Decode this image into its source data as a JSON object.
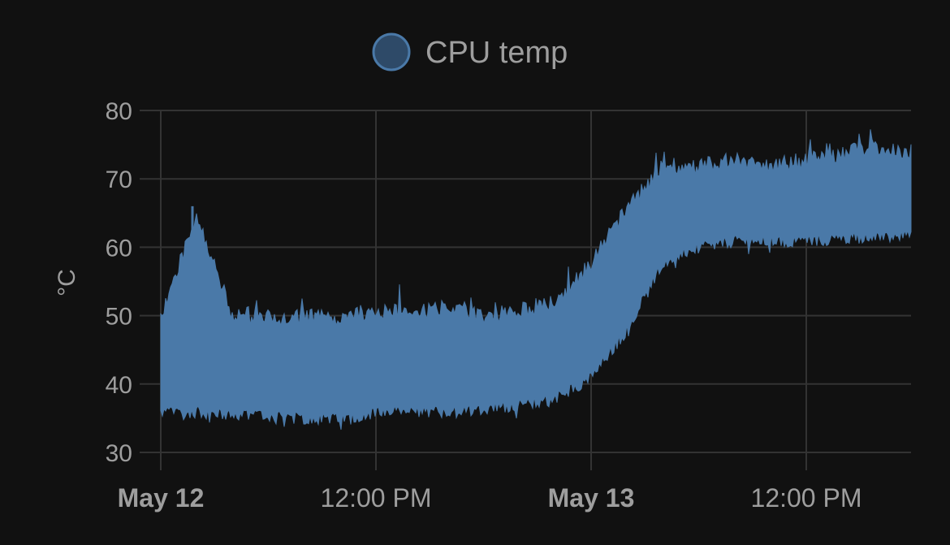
{
  "chart_data": {
    "type": "area",
    "title": "",
    "ylabel": "°C",
    "xlabel": "",
    "ylim": [
      30,
      80
    ],
    "y_ticks": [
      30,
      40,
      50,
      60,
      70,
      80
    ],
    "x_range": [
      "2024-05-12 00:00",
      "2024-05-13 21:00"
    ],
    "x_ticks": [
      {
        "value": "2024-05-12 00:00",
        "label": "May 12",
        "major": true
      },
      {
        "value": "2024-05-12 12:00",
        "label": "12:00 PM",
        "major": false
      },
      {
        "value": "2024-05-13 00:00",
        "label": "May 13",
        "major": true
      },
      {
        "value": "2024-05-13 12:00",
        "label": "12:00 PM",
        "major": false
      }
    ],
    "grid": true,
    "legend_position": "top-center",
    "series": [
      {
        "name": "CPU temp",
        "color": "#4a79a8",
        "x": [
          "2024-05-12 00:00",
          "2024-05-12 02:00",
          "2024-05-12 04:00",
          "2024-05-12 06:00",
          "2024-05-12 08:00",
          "2024-05-12 10:00",
          "2024-05-12 12:00",
          "2024-05-12 14:00",
          "2024-05-12 16:00",
          "2024-05-12 18:00",
          "2024-05-12 20:00",
          "2024-05-12 22:00",
          "2024-05-13 00:00",
          "2024-05-13 02:00",
          "2024-05-13 04:00",
          "2024-05-13 06:00",
          "2024-05-13 08:00",
          "2024-05-13 10:00",
          "2024-05-13 12:00",
          "2024-05-13 14:00",
          "2024-05-13 16:00",
          "2024-05-13 18:00",
          "2024-05-13 20:00",
          "2024-05-13 21:00"
        ],
        "min": [
          35,
          35,
          34.5,
          34.5,
          34,
          34,
          35,
          35,
          35,
          35.5,
          36,
          37,
          40,
          47,
          57,
          59,
          60,
          60,
          60,
          60.5,
          60.5,
          61,
          61,
          61
        ],
        "max": [
          51,
          66,
          51,
          51,
          51,
          51,
          52,
          52,
          52,
          51,
          52,
          53,
          59,
          67,
          73,
          73,
          74,
          73,
          74,
          75,
          76,
          75,
          76,
          76
        ]
      }
    ]
  }
}
